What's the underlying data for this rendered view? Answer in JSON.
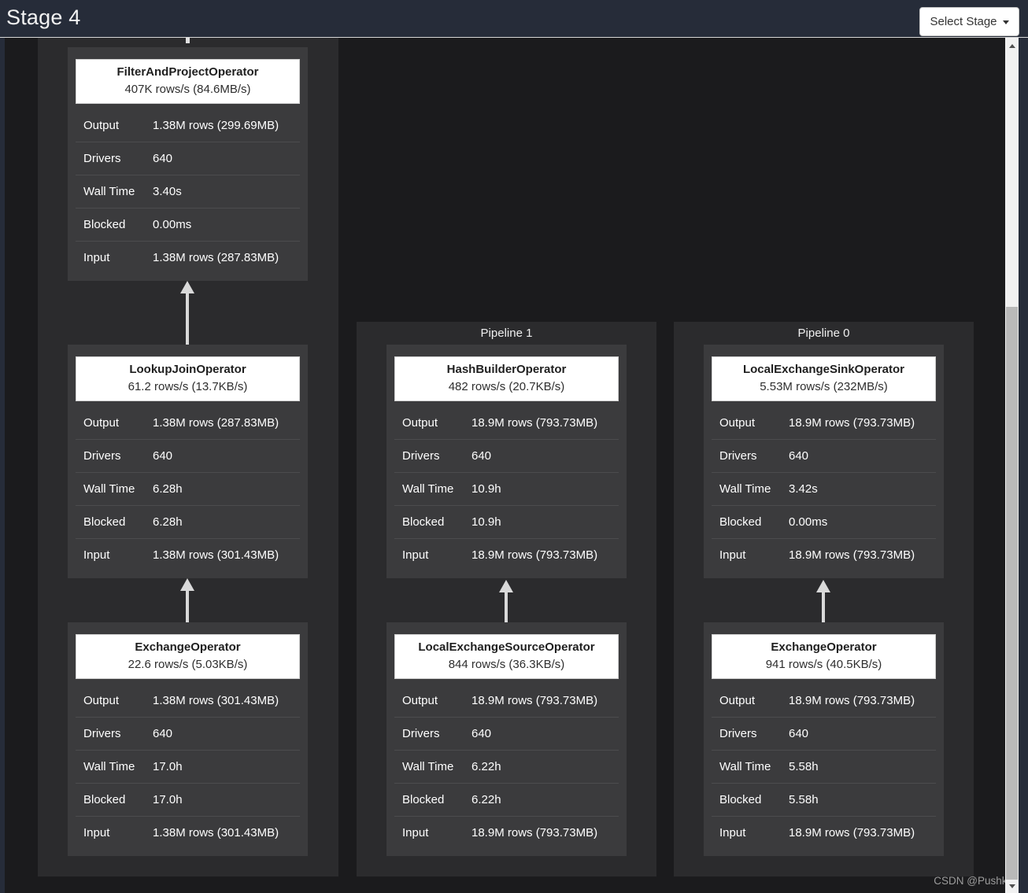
{
  "header": {
    "title": "Stage 4",
    "select_stage": {
      "label": "Select Stage"
    }
  },
  "watermark": "CSDN @Pushkin",
  "pipelines": [
    {
      "label": "",
      "operators": [
        {
          "name": "FilterAndProjectOperator",
          "rate": "407K rows/s (84.6MB/s)",
          "stats": [
            {
              "label": "Output",
              "value": "1.38M rows (299.69MB)"
            },
            {
              "label": "Drivers",
              "value": "640"
            },
            {
              "label": "Wall Time",
              "value": "3.40s"
            },
            {
              "label": "Blocked",
              "value": "0.00ms"
            },
            {
              "label": "Input",
              "value": "1.38M rows (287.83MB)"
            }
          ]
        },
        {
          "name": "LookupJoinOperator",
          "rate": "61.2 rows/s (13.7KB/s)",
          "stats": [
            {
              "label": "Output",
              "value": "1.38M rows (287.83MB)"
            },
            {
              "label": "Drivers",
              "value": "640"
            },
            {
              "label": "Wall Time",
              "value": "6.28h"
            },
            {
              "label": "Blocked",
              "value": "6.28h"
            },
            {
              "label": "Input",
              "value": "1.38M rows (301.43MB)"
            }
          ]
        },
        {
          "name": "ExchangeOperator",
          "rate": "22.6 rows/s (5.03KB/s)",
          "stats": [
            {
              "label": "Output",
              "value": "1.38M rows (301.43MB)"
            },
            {
              "label": "Drivers",
              "value": "640"
            },
            {
              "label": "Wall Time",
              "value": "17.0h"
            },
            {
              "label": "Blocked",
              "value": "17.0h"
            },
            {
              "label": "Input",
              "value": "1.38M rows (301.43MB)"
            }
          ]
        }
      ]
    },
    {
      "label": "Pipeline 1",
      "operators": [
        {
          "name": "HashBuilderOperator",
          "rate": "482 rows/s (20.7KB/s)",
          "stats": [
            {
              "label": "Output",
              "value": "18.9M rows (793.73MB)"
            },
            {
              "label": "Drivers",
              "value": "640"
            },
            {
              "label": "Wall Time",
              "value": "10.9h"
            },
            {
              "label": "Blocked",
              "value": "10.9h"
            },
            {
              "label": "Input",
              "value": "18.9M rows (793.73MB)"
            }
          ]
        },
        {
          "name": "LocalExchangeSourceOperator",
          "rate": "844 rows/s (36.3KB/s)",
          "stats": [
            {
              "label": "Output",
              "value": "18.9M rows (793.73MB)"
            },
            {
              "label": "Drivers",
              "value": "640"
            },
            {
              "label": "Wall Time",
              "value": "6.22h"
            },
            {
              "label": "Blocked",
              "value": "6.22h"
            },
            {
              "label": "Input",
              "value": "18.9M rows (793.73MB)"
            }
          ]
        }
      ]
    },
    {
      "label": "Pipeline 0",
      "operators": [
        {
          "name": "LocalExchangeSinkOperator",
          "rate": "5.53M rows/s (232MB/s)",
          "stats": [
            {
              "label": "Output",
              "value": "18.9M rows (793.73MB)"
            },
            {
              "label": "Drivers",
              "value": "640"
            },
            {
              "label": "Wall Time",
              "value": "3.42s"
            },
            {
              "label": "Blocked",
              "value": "0.00ms"
            },
            {
              "label": "Input",
              "value": "18.9M rows (793.73MB)"
            }
          ]
        },
        {
          "name": "ExchangeOperator",
          "rate": "941 rows/s (40.5KB/s)",
          "stats": [
            {
              "label": "Output",
              "value": "18.9M rows (793.73MB)"
            },
            {
              "label": "Drivers",
              "value": "640"
            },
            {
              "label": "Wall Time",
              "value": "5.58h"
            },
            {
              "label": "Blocked",
              "value": "5.58h"
            },
            {
              "label": "Input",
              "value": "18.9M rows (793.73MB)"
            }
          ]
        }
      ]
    }
  ]
}
